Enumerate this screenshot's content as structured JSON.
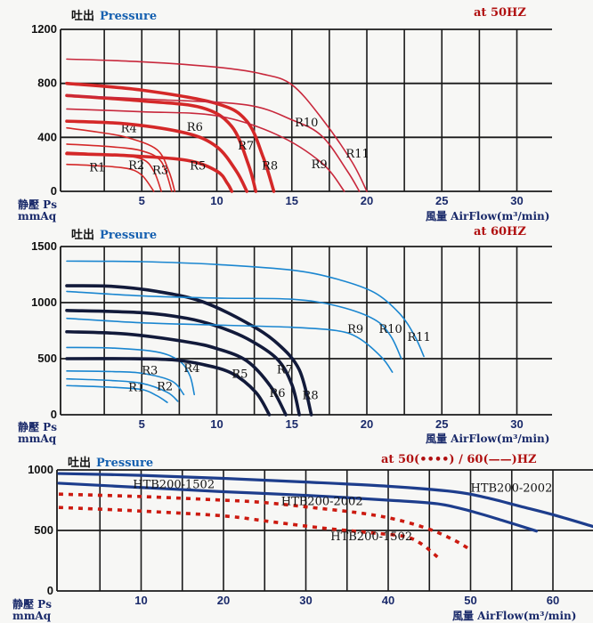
{
  "chart_data": [
    {
      "type": "line",
      "title_cn": "吐出",
      "title_en": "Pressure",
      "frequency": "at 50HZ",
      "ylabel_cn": "静壓 Ps",
      "ylabel_unit": "mmAq",
      "xlabel": "風量 AirFlow(m³/min)",
      "xlim": [
        0,
        32.5
      ],
      "ylim": [
        0,
        1200
      ],
      "xticks": [
        5,
        10,
        15,
        20,
        25,
        30
      ],
      "yticks": [
        0,
        400,
        800,
        1200
      ],
      "grid": true,
      "series": [
        {
          "name": "R1",
          "color": "#d42828",
          "weight": "thin",
          "points": [
            [
              0,
              200
            ],
            [
              2,
              190
            ],
            [
              4,
              170
            ],
            [
              5,
              120
            ],
            [
              5.8,
              0
            ]
          ],
          "label_at": [
            1.5,
            150
          ]
        },
        {
          "name": "R2",
          "color": "#d42828",
          "weight": "thin",
          "points": [
            [
              0,
              290
            ],
            [
              3,
              270
            ],
            [
              5,
              240
            ],
            [
              5.8,
              150
            ],
            [
              6.3,
              0
            ]
          ],
          "label_at": [
            4.1,
            165
          ]
        },
        {
          "name": "R3",
          "color": "#d42828",
          "weight": "thin",
          "points": [
            [
              0,
              350
            ],
            [
              3,
              330
            ],
            [
              5,
              300
            ],
            [
              6.3,
              220
            ],
            [
              7,
              0
            ]
          ],
          "label_at": [
            5.7,
            130
          ]
        },
        {
          "name": "R4",
          "color": "#d42828",
          "weight": "thin",
          "points": [
            [
              0,
              470
            ],
            [
              2,
              440
            ],
            [
              4,
              400
            ],
            [
              6,
              310
            ],
            [
              6.8,
              150
            ],
            [
              7.2,
              0
            ]
          ],
          "label_at": [
            3.6,
            440
          ]
        },
        {
          "name": "R5",
          "color": "#d42828",
          "weight": "thick",
          "points": [
            [
              0,
              280
            ],
            [
              4,
              265
            ],
            [
              8,
              230
            ],
            [
              10,
              150
            ],
            [
              10.7,
              60
            ],
            [
              11,
              0
            ]
          ],
          "label_at": [
            8.2,
            160
          ]
        },
        {
          "name": "R6",
          "color": "#d42828",
          "weight": "thick",
          "points": [
            [
              0,
              520
            ],
            [
              4,
              500
            ],
            [
              8,
              430
            ],
            [
              10,
              330
            ],
            [
              11.3,
              150
            ],
            [
              12,
              0
            ]
          ],
          "label_at": [
            8,
            450
          ]
        },
        {
          "name": "R7",
          "color": "#d42828",
          "weight": "thick",
          "points": [
            [
              0,
              710
            ],
            [
              5,
              670
            ],
            [
              9,
              620
            ],
            [
              11,
              480
            ],
            [
              12.1,
              200
            ],
            [
              12.6,
              0
            ]
          ],
          "label_at": [
            11.4,
            310
          ]
        },
        {
          "name": "R8",
          "color": "#d42828",
          "weight": "thick",
          "points": [
            [
              0,
              800
            ],
            [
              5,
              750
            ],
            [
              10,
              650
            ],
            [
              12,
              520
            ],
            [
              13.1,
              250
            ],
            [
              13.8,
              0
            ]
          ],
          "label_at": [
            13,
            160
          ]
        },
        {
          "name": "R9",
          "color": "#c8283c",
          "weight": "thin",
          "points": [
            [
              0,
              610
            ],
            [
              5,
              590
            ],
            [
              10,
              560
            ],
            [
              14,
              420
            ],
            [
              17,
              210
            ],
            [
              18.5,
              0
            ]
          ],
          "label_at": [
            16.3,
            170
          ]
        },
        {
          "name": "R10",
          "color": "#c8283c",
          "weight": "thin",
          "points": [
            [
              0,
              710
            ],
            [
              6,
              680
            ],
            [
              12,
              640
            ],
            [
              15,
              530
            ],
            [
              17,
              410
            ],
            [
              18.7,
              150
            ],
            [
              19.5,
              0
            ]
          ],
          "label_at": [
            15.2,
            480
          ]
        },
        {
          "name": "R11",
          "color": "#c8283c",
          "weight": "thin",
          "points": [
            [
              0,
              980
            ],
            [
              5,
              960
            ],
            [
              10,
              920
            ],
            [
              13,
              870
            ],
            [
              15,
              790
            ],
            [
              17,
              540
            ],
            [
              19,
              220
            ],
            [
              20,
              0
            ]
          ],
          "label_at": [
            18.6,
            250
          ]
        }
      ]
    },
    {
      "type": "line",
      "title_cn": "吐出",
      "title_en": "Pressure",
      "frequency": "at 60HZ",
      "ylabel_cn": "静壓 Ps",
      "ylabel_unit": "mmAq",
      "xlabel": "風量 AirFlow(m³/min)",
      "xlim": [
        0,
        32.5
      ],
      "ylim": [
        0,
        1500
      ],
      "xticks": [
        5,
        10,
        15,
        20,
        25,
        30
      ],
      "yticks": [
        0,
        500,
        1000,
        1500
      ],
      "grid": true,
      "series": [
        {
          "name": "R1",
          "color": "#1a86d0",
          "weight": "thin",
          "points": [
            [
              0,
              260
            ],
            [
              3,
              245
            ],
            [
              5,
              225
            ],
            [
              6,
              170
            ],
            [
              6.7,
              110
            ]
          ],
          "label_at": [
            4.1,
            210
          ]
        },
        {
          "name": "R2",
          "color": "#1a86d0",
          "weight": "thin",
          "points": [
            [
              0,
              320
            ],
            [
              3,
              305
            ],
            [
              5,
              280
            ],
            [
              6.7,
              200
            ],
            [
              7.4,
              120
            ]
          ],
          "label_at": [
            6,
            220
          ]
        },
        {
          "name": "R3",
          "color": "#1a86d0",
          "weight": "thin",
          "points": [
            [
              0,
              390
            ],
            [
              3,
              385
            ],
            [
              5,
              370
            ],
            [
              7,
              300
            ],
            [
              7.8,
              180
            ]
          ],
          "label_at": [
            5,
            360
          ]
        },
        {
          "name": "R4",
          "color": "#1a86d0",
          "weight": "thin",
          "points": [
            [
              0,
              600
            ],
            [
              3,
              595
            ],
            [
              6,
              560
            ],
            [
              7.5,
              480
            ],
            [
              8.2,
              350
            ],
            [
              8.5,
              180
            ]
          ],
          "label_at": [
            7.8,
            380
          ]
        },
        {
          "name": "R5",
          "color": "#121a3a",
          "weight": "thick",
          "points": [
            [
              0,
              500
            ],
            [
              4,
              500
            ],
            [
              7,
              490
            ],
            [
              9,
              450
            ],
            [
              11,
              370
            ],
            [
              12.6,
              200
            ],
            [
              13.5,
              0
            ]
          ],
          "label_at": [
            11,
            330
          ]
        },
        {
          "name": "R6",
          "color": "#121a3a",
          "weight": "thick",
          "points": [
            [
              0,
              740
            ],
            [
              4,
              720
            ],
            [
              8,
              650
            ],
            [
              10,
              590
            ],
            [
              12,
              480
            ],
            [
              13.6,
              250
            ],
            [
              14.6,
              0
            ]
          ],
          "label_at": [
            13.5,
            160
          ]
        },
        {
          "name": "R7",
          "color": "#121a3a",
          "weight": "thick",
          "points": [
            [
              0,
              930
            ],
            [
              5,
              910
            ],
            [
              8,
              860
            ],
            [
              10,
              790
            ],
            [
              12,
              680
            ],
            [
              14,
              500
            ],
            [
              15,
              270
            ],
            [
              15.5,
              0
            ]
          ],
          "label_at": [
            14,
            370
          ]
        },
        {
          "name": "R8",
          "color": "#121a3a",
          "weight": "thick",
          "points": [
            [
              0,
              1150
            ],
            [
              3,
              1145
            ],
            [
              6,
              1100
            ],
            [
              9,
              1010
            ],
            [
              12,
              820
            ],
            [
              14,
              640
            ],
            [
              15.5,
              400
            ],
            [
              16.3,
              0
            ]
          ],
          "label_at": [
            15.7,
            140
          ]
        },
        {
          "name": "R9",
          "color": "#1a86d0",
          "weight": "thin",
          "points": [
            [
              0,
              860
            ],
            [
              5,
              820
            ],
            [
              10,
              800
            ],
            [
              15,
              780
            ],
            [
              18,
              750
            ],
            [
              19.5,
              680
            ],
            [
              21,
              510
            ],
            [
              21.7,
              380
            ]
          ],
          "label_at": [
            18.7,
            730
          ]
        },
        {
          "name": "R10",
          "color": "#1a86d0",
          "weight": "thin",
          "points": [
            [
              0,
              1100
            ],
            [
              5,
              1060
            ],
            [
              10,
              1040
            ],
            [
              15,
              1030
            ],
            [
              18,
              970
            ],
            [
              20.5,
              850
            ],
            [
              21.6,
              700
            ],
            [
              22.3,
              500
            ]
          ],
          "label_at": [
            20.8,
            730
          ]
        },
        {
          "name": "R11",
          "color": "#1a86d0",
          "weight": "thin",
          "points": [
            [
              0,
              1370
            ],
            [
              5,
              1365
            ],
            [
              10,
              1340
            ],
            [
              15,
              1290
            ],
            [
              18,
              1210
            ],
            [
              20.5,
              1090
            ],
            [
              22.2,
              900
            ],
            [
              23.2,
              700
            ],
            [
              23.8,
              520
            ]
          ],
          "label_at": [
            22.7,
            660
          ]
        }
      ]
    },
    {
      "type": "line",
      "title_cn": "吐出",
      "title_en": "Pressure",
      "frequency": "at 50(••••) / 60(——)HZ",
      "ylabel_cn": "静壓 Ps",
      "ylabel_unit": "mmAq",
      "xlabel": "風量 AirFlow(m³/min)",
      "xlim": [
        0,
        65
      ],
      "ylim": [
        0,
        1000
      ],
      "xticks": [
        10,
        20,
        30,
        40,
        50,
        60
      ],
      "yticks": [
        0,
        500,
        1000
      ],
      "grid": true,
      "series": [
        {
          "name": "HTB200-2002",
          "frequency": "60HZ",
          "color": "#1d3d8c",
          "style": "solid",
          "points": [
            [
              0,
              970
            ],
            [
              10,
              955
            ],
            [
              20,
              930
            ],
            [
              30,
              900
            ],
            [
              40,
              865
            ],
            [
              48,
              820
            ],
            [
              52,
              770
            ],
            [
              56,
              700
            ],
            [
              60,
              630
            ],
            [
              65,
              530
            ]
          ],
          "label_at": [
            50,
            820
          ]
        },
        {
          "name": "HTB200-1502",
          "frequency": "60HZ",
          "color": "#1d3d8c",
          "style": "solid",
          "points": [
            [
              0,
              890
            ],
            [
              10,
              855
            ],
            [
              20,
              820
            ],
            [
              30,
              790
            ],
            [
              40,
              750
            ],
            [
              46,
              720
            ],
            [
              50,
              660
            ],
            [
              54,
              580
            ],
            [
              58,
              495
            ]
          ],
          "label_at": [
            9,
            850
          ]
        },
        {
          "name": "HTB200-2002",
          "frequency": "50HZ",
          "color": "#cc1a10",
          "style": "dotted",
          "points": [
            [
              0,
              800
            ],
            [
              10,
              780
            ],
            [
              20,
              750
            ],
            [
              25,
              730
            ],
            [
              32,
              680
            ],
            [
              37,
              640
            ],
            [
              41,
              590
            ],
            [
              45,
              510
            ],
            [
              48,
              420
            ],
            [
              50,
              340
            ]
          ],
          "label_at": [
            27,
            710
          ]
        },
        {
          "name": "HTB200-1502",
          "frequency": "50HZ",
          "color": "#cc1a10",
          "style": "dotted",
          "points": [
            [
              0,
              690
            ],
            [
              10,
              660
            ],
            [
              20,
              620
            ],
            [
              26,
              570
            ],
            [
              32,
              520
            ],
            [
              38,
              480
            ],
            [
              42,
              450
            ],
            [
              44,
              390
            ],
            [
              46,
              280
            ]
          ],
          "label_at": [
            33,
            420
          ]
        }
      ]
    }
  ]
}
